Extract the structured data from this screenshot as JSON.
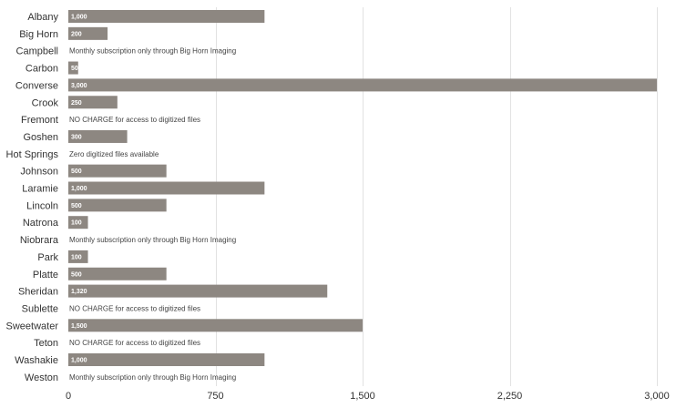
{
  "chart_data": {
    "type": "bar",
    "orientation": "horizontal",
    "categories": [
      "Albany",
      "Big Horn",
      "Campbell",
      "Carbon",
      "Converse",
      "Crook",
      "Fremont",
      "Goshen",
      "Hot Springs",
      "Johnson",
      "Laramie",
      "Lincoln",
      "Natrona",
      "Niobrara",
      "Park",
      "Platte",
      "Sheridan",
      "Sublette",
      "Sweetwater",
      "Teton",
      "Washakie",
      "Weston"
    ],
    "values": [
      1000,
      200,
      null,
      50,
      3000,
      250,
      null,
      300,
      null,
      500,
      1000,
      500,
      100,
      null,
      100,
      500,
      1320,
      null,
      1500,
      null,
      1000,
      null
    ],
    "value_labels": [
      "1,000",
      "200",
      "",
      "50",
      "3,000",
      "250",
      "",
      "300",
      "",
      "500",
      "1,000",
      "500",
      "100",
      "",
      "100",
      "500",
      "1,320",
      "",
      "1,500",
      "",
      "1,000",
      ""
    ],
    "notes": [
      "",
      "",
      "Monthly subscription only through Big Horn Imaging",
      "",
      "",
      "",
      "NO CHARGE for access to digitized files",
      "",
      "Zero digitized files available",
      "",
      "",
      "",
      "",
      "Monthly subscription only through Big Horn Imaging",
      "",
      "",
      "",
      "NO CHARGE for access to digitized files",
      "",
      "NO CHARGE for access to digitized files",
      "",
      "Monthly subscription only through Big Horn Imaging"
    ],
    "xlim": [
      0,
      3000
    ],
    "x_ticks": [
      0,
      750,
      1500,
      2250,
      3000
    ],
    "x_tick_labels": [
      "0",
      "750",
      "1,500",
      "2,250",
      "3,000"
    ],
    "grid": true,
    "bar_color": "#8d8781",
    "title": "",
    "xlabel": "",
    "ylabel": ""
  }
}
